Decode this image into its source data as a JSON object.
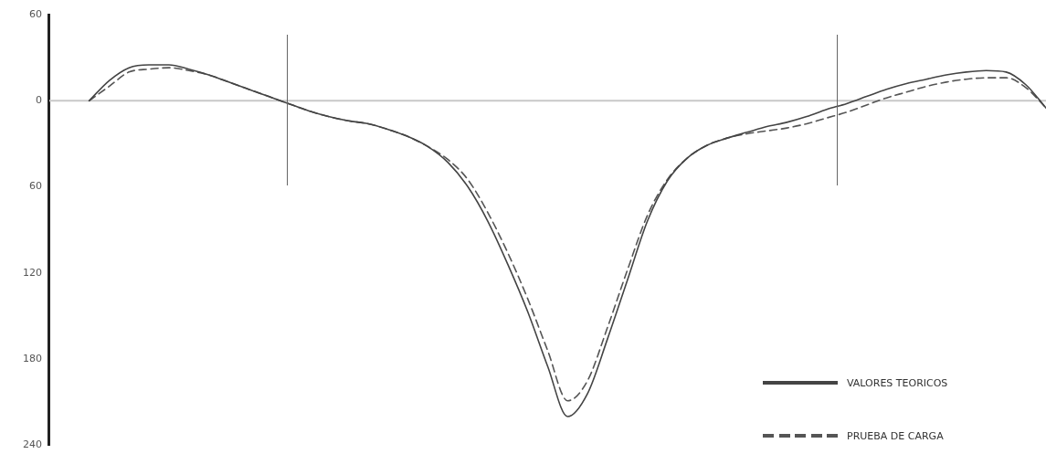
{
  "chart_data": {
    "type": "line",
    "categories": [
      null,
      null,
      null,
      null,
      null,
      null,
      null,
      null,
      null,
      null,
      null,
      null,
      null,
      null,
      null,
      null,
      null,
      null,
      null,
      null,
      null,
      null,
      null,
      null,
      null,
      null,
      null,
      null,
      null,
      null,
      null,
      null,
      null,
      null,
      null,
      null,
      null,
      null,
      null,
      null,
      null,
      null,
      null,
      null,
      null,
      null,
      null,
      null,
      null,
      null,
      null
    ],
    "series": [
      {
        "name": "VALORES TEORICOS",
        "color": "#444444",
        "line_style": "solid",
        "values": [
          null,
          null,
          0,
          -14,
          -23,
          -25,
          -25,
          -22,
          -18,
          -13,
          -8,
          -3,
          2,
          7,
          11,
          14,
          16,
          20,
          25,
          32,
          43,
          60,
          84,
          114,
          147,
          185,
          220,
          204,
          166,
          125,
          84,
          56,
          40,
          31,
          26,
          22,
          18,
          15,
          11,
          6,
          2,
          -3,
          -8,
          -12,
          -15,
          -18,
          -20,
          -21,
          -20,
          -11,
          5
        ]
      },
      {
        "name": "PRUEBA DE CARGA",
        "color": "#555555",
        "line_style": "dashed",
        "values": [
          null,
          null,
          0,
          -10,
          -20,
          -22,
          -23,
          -21,
          -18,
          -13,
          -8,
          -3,
          2,
          7,
          11,
          14,
          16,
          20,
          25,
          32,
          41,
          55,
          78,
          106,
          138,
          174,
          209,
          195,
          158,
          118,
          80,
          55,
          40,
          31,
          26,
          23,
          21,
          19,
          16,
          12,
          8,
          3,
          -2,
          -6,
          -10,
          -13,
          -15,
          -16,
          -16,
          -9,
          5
        ]
      }
    ],
    "ylim": [
      240,
      -60
    ],
    "yticks": [
      {
        "value": -60,
        "label": "60"
      },
      0,
      60,
      120,
      180,
      240
    ],
    "tick_labels": "y",
    "grid": false,
    "legend": "bottom right",
    "marker": "none",
    "ref_lines": [
      {
        "axis": "y",
        "value": 0,
        "color": "#c8c8c8"
      }
    ]
  }
}
